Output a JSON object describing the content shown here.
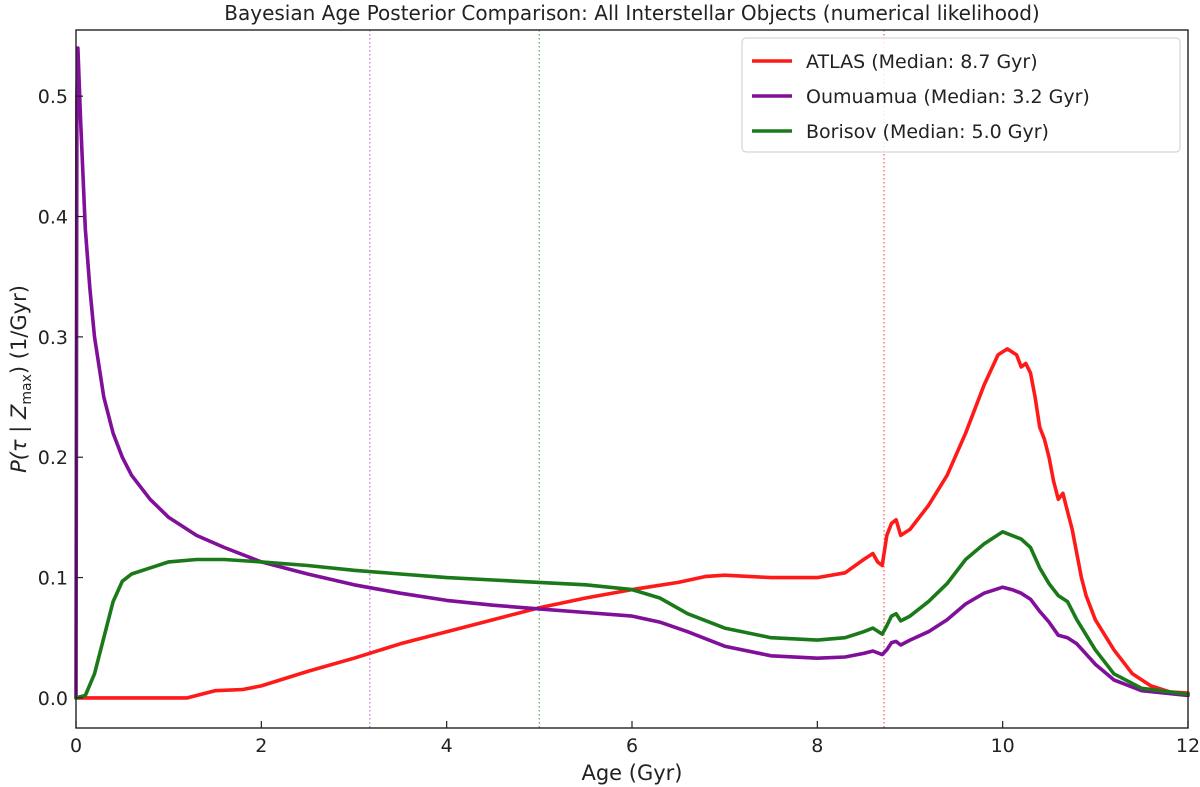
{
  "chart_data": {
    "type": "line",
    "title": "Bayesian Age Posterior Comparison: All Interstellar Objects (numerical likelihood)",
    "xlabel": "Age (Gyr)",
    "ylabel_parts": [
      "P(τ | Z",
      "max",
      ") (1/Gyr)"
    ],
    "xlim": [
      0,
      12
    ],
    "ylim": [
      -0.025,
      0.555
    ],
    "xticks": [
      0,
      2,
      4,
      6,
      8,
      10,
      12
    ],
    "yticks": [
      0.0,
      0.1,
      0.2,
      0.3,
      0.4,
      0.5
    ],
    "xtick_labels": [
      "0",
      "2",
      "4",
      "6",
      "8",
      "10",
      "12"
    ],
    "ytick_labels": [
      "0.0",
      "0.1",
      "0.2",
      "0.3",
      "0.4",
      "0.5"
    ],
    "grid": false,
    "legend_position": "top-right",
    "median_lines": [
      {
        "x": 3.17,
        "color": "#c77ddb"
      },
      {
        "x": 5.0,
        "color": "#66b266"
      },
      {
        "x": 8.72,
        "color": "#ff6666"
      }
    ],
    "series": [
      {
        "name": "ATLAS (Median: 8.7 Gyr)",
        "color": "#ff1a1a",
        "x": [
          0,
          1.2,
          1.5,
          1.8,
          2.0,
          2.5,
          3.0,
          3.5,
          4.0,
          4.5,
          5.0,
          5.5,
          6.0,
          6.5,
          6.8,
          7.0,
          7.5,
          8.0,
          8.3,
          8.5,
          8.6,
          8.65,
          8.7,
          8.75,
          8.8,
          8.85,
          8.9,
          9.0,
          9.2,
          9.4,
          9.6,
          9.8,
          9.95,
          10.05,
          10.15,
          10.2,
          10.25,
          10.3,
          10.35,
          10.4,
          10.45,
          10.5,
          10.55,
          10.6,
          10.65,
          10.7,
          10.75,
          10.8,
          10.85,
          10.9,
          11.0,
          11.2,
          11.4,
          11.6,
          11.8,
          12.0
        ],
        "y": [
          0.0,
          0.0,
          0.006,
          0.007,
          0.01,
          0.022,
          0.033,
          0.045,
          0.055,
          0.065,
          0.075,
          0.083,
          0.09,
          0.096,
          0.101,
          0.102,
          0.1,
          0.1,
          0.104,
          0.115,
          0.12,
          0.113,
          0.11,
          0.135,
          0.145,
          0.148,
          0.135,
          0.14,
          0.16,
          0.185,
          0.22,
          0.26,
          0.285,
          0.29,
          0.285,
          0.275,
          0.278,
          0.27,
          0.25,
          0.225,
          0.215,
          0.2,
          0.18,
          0.165,
          0.17,
          0.155,
          0.14,
          0.12,
          0.1,
          0.085,
          0.065,
          0.04,
          0.02,
          0.01,
          0.005,
          0.004
        ]
      },
      {
        "name": "Oumuamua (Median: 3.2 Gyr)",
        "color": "#800f99",
        "x": [
          0,
          0.01,
          0.02,
          0.05,
          0.1,
          0.15,
          0.2,
          0.3,
          0.4,
          0.5,
          0.6,
          0.8,
          1.0,
          1.3,
          1.6,
          2.0,
          2.5,
          3.0,
          3.5,
          4.0,
          4.5,
          5.0,
          5.5,
          6.0,
          6.3,
          6.6,
          7.0,
          7.5,
          8.0,
          8.3,
          8.5,
          8.6,
          8.7,
          8.75,
          8.8,
          8.85,
          8.9,
          9.0,
          9.2,
          9.4,
          9.6,
          9.8,
          10.0,
          10.1,
          10.2,
          10.3,
          10.4,
          10.5,
          10.6,
          10.7,
          10.8,
          11.0,
          11.2,
          11.5,
          12.0
        ],
        "y": [
          0.0,
          0.5,
          0.54,
          0.48,
          0.39,
          0.34,
          0.3,
          0.25,
          0.22,
          0.2,
          0.185,
          0.165,
          0.15,
          0.135,
          0.125,
          0.113,
          0.103,
          0.094,
          0.087,
          0.081,
          0.077,
          0.074,
          0.071,
          0.068,
          0.063,
          0.055,
          0.043,
          0.035,
          0.033,
          0.034,
          0.037,
          0.039,
          0.036,
          0.04,
          0.046,
          0.047,
          0.044,
          0.048,
          0.055,
          0.065,
          0.078,
          0.087,
          0.092,
          0.09,
          0.087,
          0.082,
          0.072,
          0.063,
          0.052,
          0.05,
          0.045,
          0.028,
          0.015,
          0.006,
          0.002
        ]
      },
      {
        "name": "Borisov (Median: 5.0 Gyr)",
        "color": "#1a7a1a",
        "x": [
          0,
          0.1,
          0.2,
          0.3,
          0.4,
          0.5,
          0.6,
          0.8,
          1.0,
          1.3,
          1.6,
          2.0,
          2.5,
          3.0,
          3.5,
          4.0,
          4.5,
          5.0,
          5.5,
          6.0,
          6.3,
          6.6,
          7.0,
          7.5,
          8.0,
          8.3,
          8.5,
          8.6,
          8.7,
          8.75,
          8.8,
          8.85,
          8.9,
          9.0,
          9.2,
          9.4,
          9.6,
          9.8,
          10.0,
          10.1,
          10.2,
          10.3,
          10.4,
          10.5,
          10.6,
          10.7,
          10.8,
          11.0,
          11.2,
          11.5,
          12.0
        ],
        "y": [
          0.0,
          0.002,
          0.02,
          0.05,
          0.08,
          0.097,
          0.103,
          0.108,
          0.113,
          0.115,
          0.115,
          0.113,
          0.11,
          0.106,
          0.103,
          0.1,
          0.098,
          0.096,
          0.094,
          0.09,
          0.083,
          0.07,
          0.058,
          0.05,
          0.048,
          0.05,
          0.055,
          0.058,
          0.053,
          0.06,
          0.068,
          0.07,
          0.064,
          0.068,
          0.08,
          0.095,
          0.115,
          0.128,
          0.138,
          0.135,
          0.132,
          0.125,
          0.108,
          0.095,
          0.085,
          0.08,
          0.065,
          0.04,
          0.02,
          0.008,
          0.003
        ]
      }
    ]
  }
}
